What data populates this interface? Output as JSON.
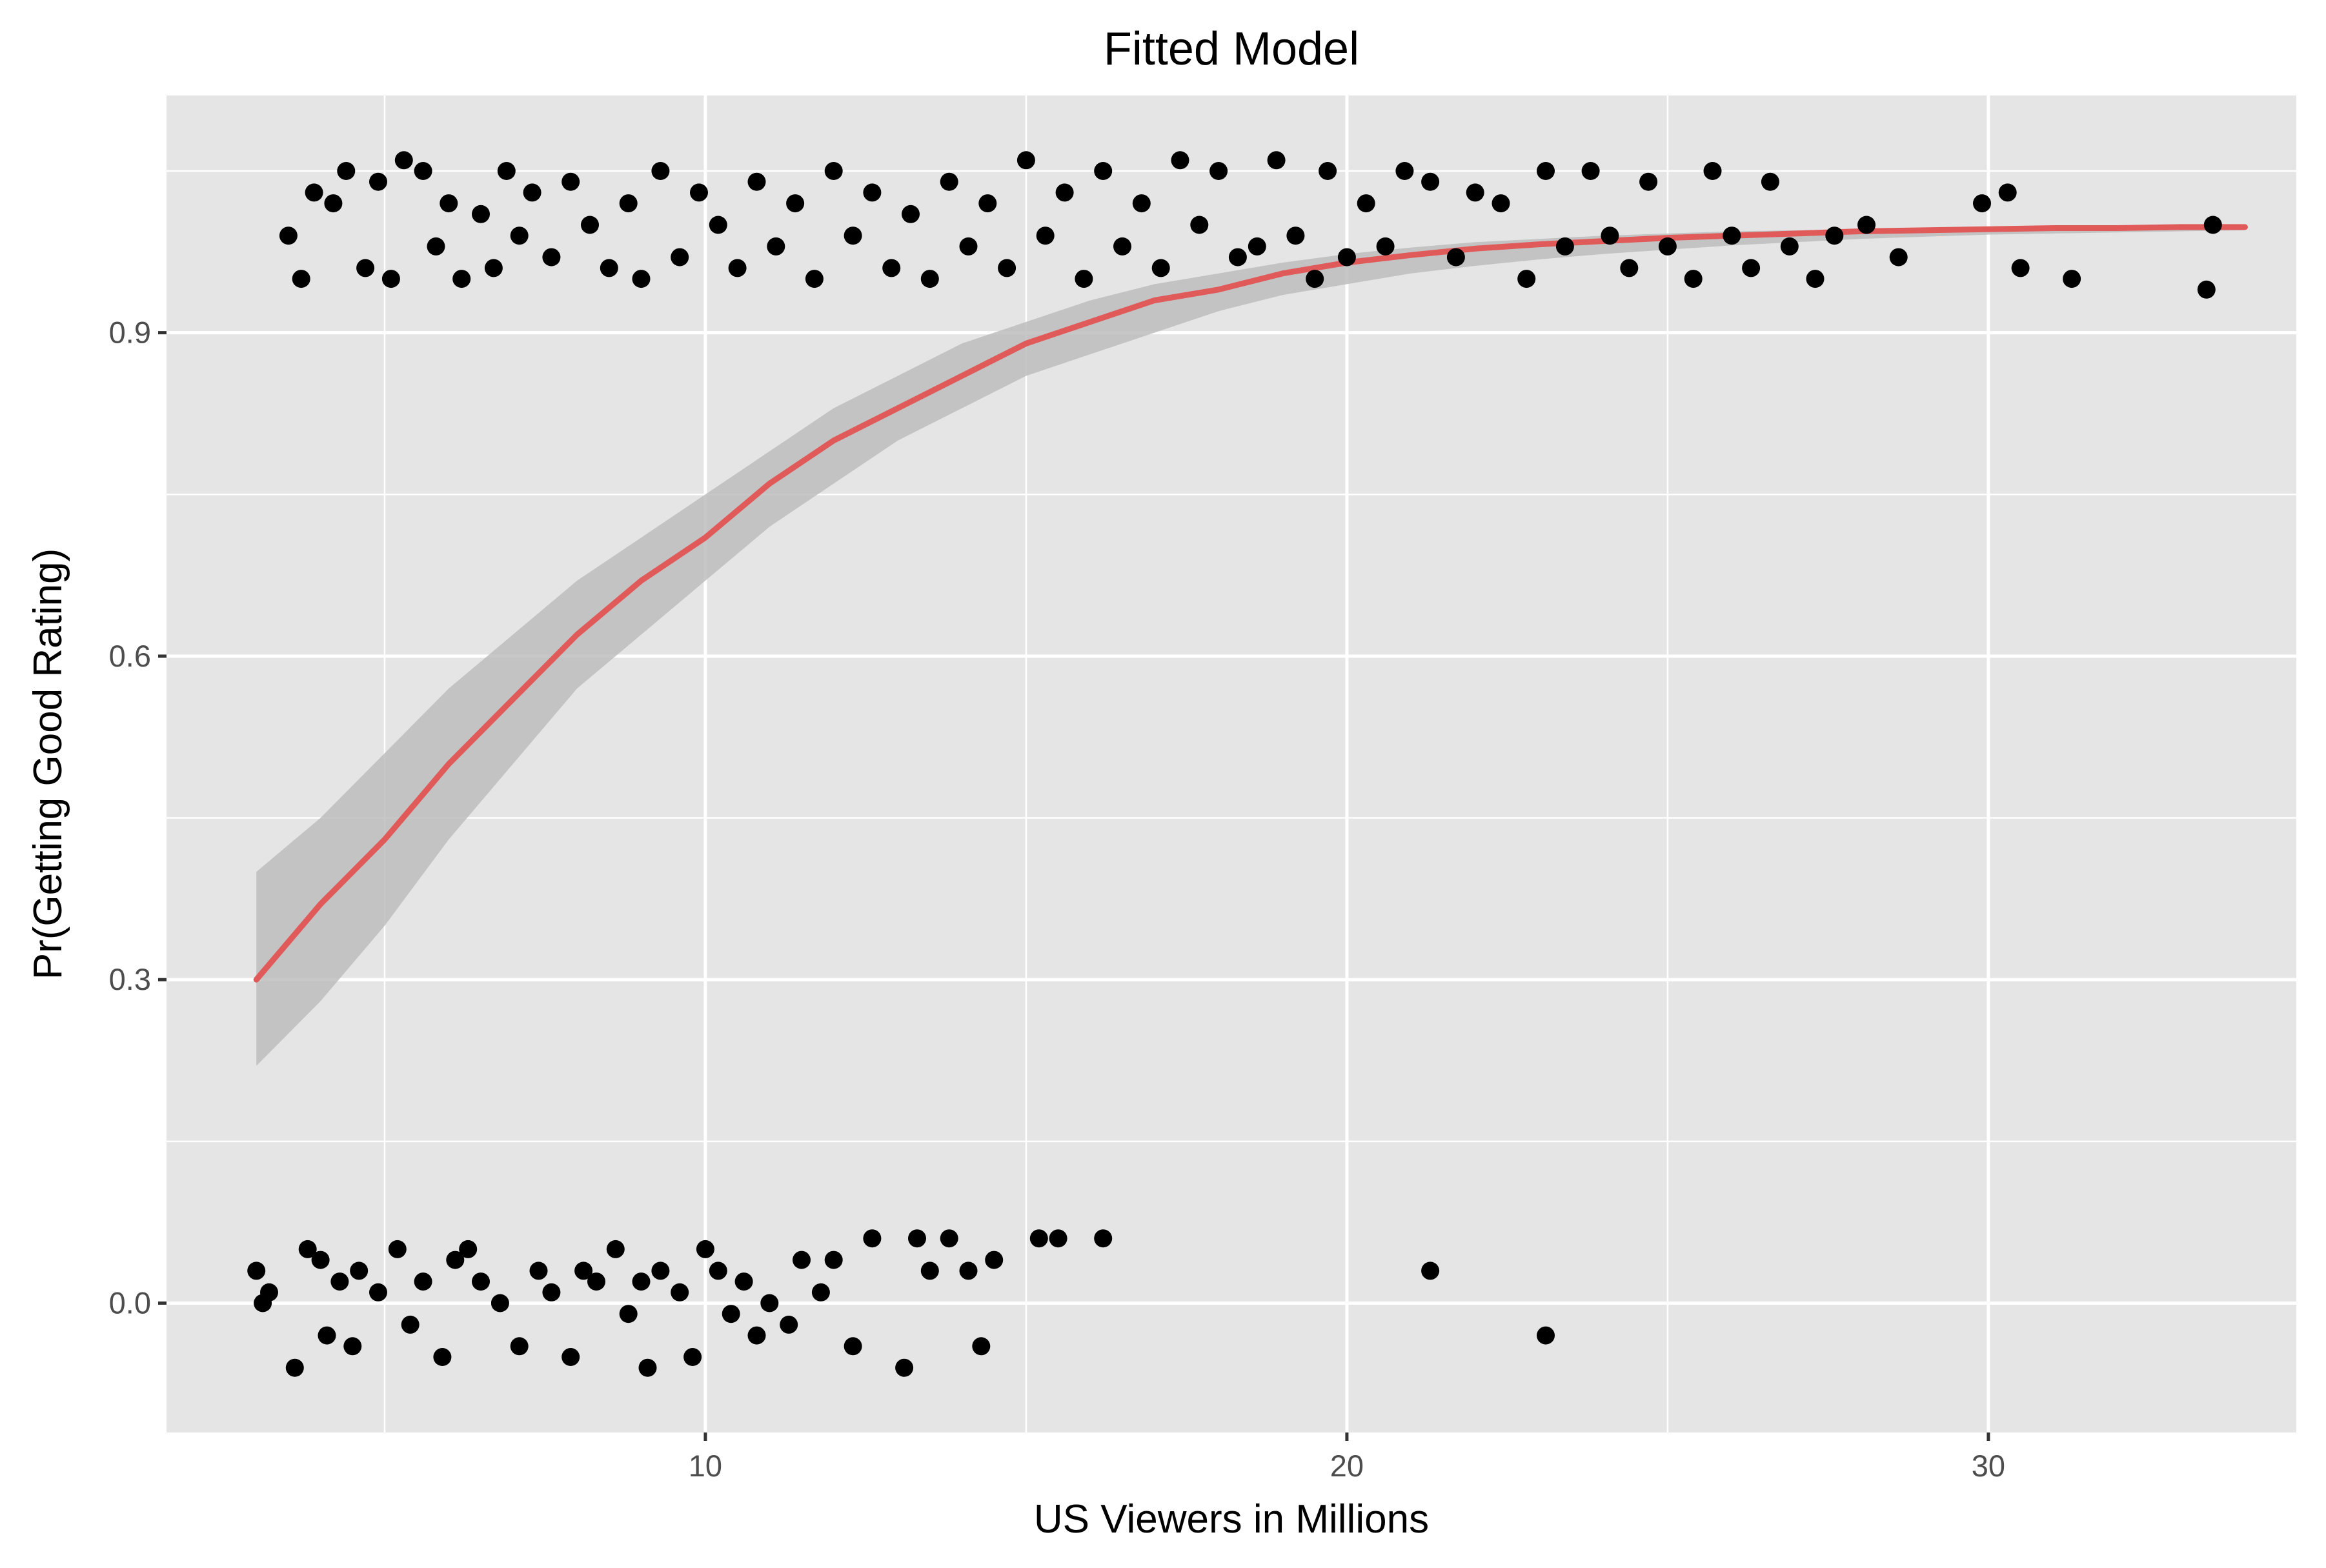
{
  "chart_data": {
    "type": "scatter",
    "title": "Fitted Model",
    "xlabel": "US Viewers in Millions",
    "ylabel": "Pr(Getting Good Rating)",
    "xlim": [
      1.6,
      34.8
    ],
    "ylim": [
      -0.12,
      1.12
    ],
    "x_ticks": [
      10,
      20,
      30
    ],
    "x_tick_labels": [
      "10",
      "20",
      "30"
    ],
    "y_ticks": [
      0.0,
      0.3,
      0.6,
      0.9
    ],
    "y_tick_labels": [
      "0.0",
      "0.3",
      "0.6",
      "0.9"
    ],
    "grid": true,
    "colors": {
      "panel_background": "#e5e5e5",
      "grid": "#ffffff",
      "points": "#000000",
      "fit_line": "#e05a5a",
      "confidence_band": "#bdbdbd"
    },
    "fitted_curve": {
      "x": [
        3.0,
        4.0,
        5.0,
        6.0,
        7.0,
        8.0,
        9.0,
        10.0,
        11.0,
        12.0,
        13.0,
        14.0,
        15.0,
        16.0,
        17.0,
        18.0,
        19.0,
        20.0,
        21.0,
        22.0,
        23.0,
        24.0,
        25.0,
        26.0,
        27.0,
        28.0,
        29.0,
        30.0,
        31.0,
        32.0,
        33.0,
        34.0
      ],
      "y": [
        0.3,
        0.37,
        0.43,
        0.5,
        0.56,
        0.62,
        0.67,
        0.71,
        0.76,
        0.8,
        0.83,
        0.86,
        0.89,
        0.91,
        0.93,
        0.94,
        0.955,
        0.965,
        0.972,
        0.978,
        0.982,
        0.985,
        0.988,
        0.99,
        0.992,
        0.994,
        0.995,
        0.996,
        0.997,
        0.997,
        0.998,
        0.998
      ],
      "lower": [
        0.22,
        0.28,
        0.35,
        0.43,
        0.5,
        0.57,
        0.62,
        0.67,
        0.72,
        0.76,
        0.8,
        0.83,
        0.86,
        0.88,
        0.9,
        0.92,
        0.935,
        0.945,
        0.955,
        0.962,
        0.968,
        0.973,
        0.977,
        0.981,
        0.984,
        0.987,
        0.989,
        0.991,
        0.992,
        0.993,
        0.994,
        0.995
      ],
      "upper": [
        0.4,
        0.45,
        0.51,
        0.57,
        0.62,
        0.67,
        0.71,
        0.75,
        0.79,
        0.83,
        0.86,
        0.89,
        0.91,
        0.93,
        0.945,
        0.955,
        0.965,
        0.973,
        0.979,
        0.984,
        0.987,
        0.99,
        0.992,
        0.994,
        0.995,
        0.996,
        0.997,
        0.998,
        0.998,
        0.999,
        0.999,
        0.999
      ]
    },
    "points": [
      [
        3.0,
        0.03
      ],
      [
        3.1,
        0.0
      ],
      [
        3.2,
        0.01
      ],
      [
        3.6,
        -0.06
      ],
      [
        3.8,
        0.05
      ],
      [
        4.0,
        0.04
      ],
      [
        4.1,
        -0.03
      ],
      [
        4.3,
        0.02
      ],
      [
        4.5,
        -0.04
      ],
      [
        4.6,
        0.03
      ],
      [
        4.9,
        0.01
      ],
      [
        5.2,
        0.05
      ],
      [
        5.4,
        -0.02
      ],
      [
        5.6,
        0.02
      ],
      [
        5.9,
        -0.05
      ],
      [
        6.1,
        0.04
      ],
      [
        6.3,
        0.05
      ],
      [
        6.5,
        0.02
      ],
      [
        6.8,
        0.0
      ],
      [
        7.1,
        -0.04
      ],
      [
        7.4,
        0.03
      ],
      [
        7.6,
        0.01
      ],
      [
        7.9,
        -0.05
      ],
      [
        8.1,
        0.03
      ],
      [
        8.3,
        0.02
      ],
      [
        8.6,
        0.05
      ],
      [
        8.8,
        -0.01
      ],
      [
        9.0,
        0.02
      ],
      [
        9.1,
        -0.06
      ],
      [
        9.3,
        0.03
      ],
      [
        9.6,
        0.01
      ],
      [
        9.8,
        -0.05
      ],
      [
        10.0,
        0.05
      ],
      [
        10.2,
        0.03
      ],
      [
        10.4,
        -0.01
      ],
      [
        10.6,
        0.02
      ],
      [
        10.8,
        -0.03
      ],
      [
        11.0,
        0.0
      ],
      [
        11.3,
        -0.02
      ],
      [
        11.5,
        0.04
      ],
      [
        11.8,
        0.01
      ],
      [
        12.0,
        0.04
      ],
      [
        12.3,
        -0.04
      ],
      [
        12.6,
        0.06
      ],
      [
        13.1,
        -0.06
      ],
      [
        13.3,
        0.06
      ],
      [
        13.5,
        0.03
      ],
      [
        13.8,
        0.06
      ],
      [
        14.1,
        0.03
      ],
      [
        14.3,
        -0.04
      ],
      [
        14.5,
        0.04
      ],
      [
        15.2,
        0.06
      ],
      [
        15.5,
        0.06
      ],
      [
        16.2,
        0.06
      ],
      [
        21.3,
        0.03
      ],
      [
        23.1,
        -0.03
      ],
      [
        3.5,
        0.99
      ],
      [
        3.7,
        0.95
      ],
      [
        3.9,
        1.03
      ],
      [
        4.2,
        1.02
      ],
      [
        4.4,
        1.05
      ],
      [
        4.7,
        0.96
      ],
      [
        4.9,
        1.04
      ],
      [
        5.1,
        0.95
      ],
      [
        5.3,
        1.06
      ],
      [
        5.6,
        1.05
      ],
      [
        5.8,
        0.98
      ],
      [
        6.0,
        1.02
      ],
      [
        6.2,
        0.95
      ],
      [
        6.5,
        1.01
      ],
      [
        6.7,
        0.96
      ],
      [
        6.9,
        1.05
      ],
      [
        7.1,
        0.99
      ],
      [
        7.3,
        1.03
      ],
      [
        7.6,
        0.97
      ],
      [
        7.9,
        1.04
      ],
      [
        8.2,
        1.0
      ],
      [
        8.5,
        0.96
      ],
      [
        8.8,
        1.02
      ],
      [
        9.0,
        0.95
      ],
      [
        9.3,
        1.05
      ],
      [
        9.6,
        0.97
      ],
      [
        9.9,
        1.03
      ],
      [
        10.2,
        1.0
      ],
      [
        10.5,
        0.96
      ],
      [
        10.8,
        1.04
      ],
      [
        11.1,
        0.98
      ],
      [
        11.4,
        1.02
      ],
      [
        11.7,
        0.95
      ],
      [
        12.0,
        1.05
      ],
      [
        12.3,
        0.99
      ],
      [
        12.6,
        1.03
      ],
      [
        12.9,
        0.96
      ],
      [
        13.2,
        1.01
      ],
      [
        13.5,
        0.95
      ],
      [
        13.8,
        1.04
      ],
      [
        14.1,
        0.98
      ],
      [
        14.4,
        1.02
      ],
      [
        14.7,
        0.96
      ],
      [
        15.0,
        1.06
      ],
      [
        15.3,
        0.99
      ],
      [
        15.6,
        1.03
      ],
      [
        15.9,
        0.95
      ],
      [
        16.2,
        1.05
      ],
      [
        16.5,
        0.98
      ],
      [
        16.8,
        1.02
      ],
      [
        17.1,
        0.96
      ],
      [
        17.4,
        1.06
      ],
      [
        17.7,
        1.0
      ],
      [
        18.0,
        1.05
      ],
      [
        18.3,
        0.97
      ],
      [
        18.6,
        0.98
      ],
      [
        18.9,
        1.06
      ],
      [
        19.2,
        0.99
      ],
      [
        19.5,
        0.95
      ],
      [
        19.7,
        1.05
      ],
      [
        20.0,
        0.97
      ],
      [
        20.3,
        1.02
      ],
      [
        20.6,
        0.98
      ],
      [
        20.9,
        1.05
      ],
      [
        21.3,
        1.04
      ],
      [
        21.7,
        0.97
      ],
      [
        22.0,
        1.03
      ],
      [
        22.4,
        1.02
      ],
      [
        22.8,
        0.95
      ],
      [
        23.1,
        1.05
      ],
      [
        23.4,
        0.98
      ],
      [
        23.8,
        1.05
      ],
      [
        24.1,
        0.99
      ],
      [
        24.4,
        0.96
      ],
      [
        24.7,
        1.04
      ],
      [
        25.0,
        0.98
      ],
      [
        25.4,
        0.95
      ],
      [
        25.7,
        1.05
      ],
      [
        26.0,
        0.99
      ],
      [
        26.3,
        0.96
      ],
      [
        26.6,
        1.04
      ],
      [
        26.9,
        0.98
      ],
      [
        27.3,
        0.95
      ],
      [
        27.6,
        0.99
      ],
      [
        28.1,
        1.0
      ],
      [
        28.6,
        0.97
      ],
      [
        29.9,
        1.02
      ],
      [
        30.3,
        1.03
      ],
      [
        30.5,
        0.96
      ],
      [
        31.3,
        0.95
      ],
      [
        33.5,
        1.0
      ],
      [
        33.4,
        0.94
      ]
    ]
  }
}
